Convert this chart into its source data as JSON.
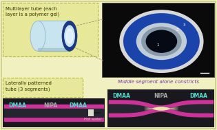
{
  "bg_color": "#f0f0c0",
  "border_color": "#c8c864",
  "top_left_label": "Multilayer tube (each\nlayer is a polymer gel)",
  "bottom_left_label": "Laterally patterned\ntube (3 segments)",
  "middle_label": "Middle segment alone constricts",
  "tube_outer_color": "#c8e4ee",
  "tube_inner_dark": "#1a3888",
  "tube_hole_color": "#ddeef8",
  "label_box_color": "#e8e89a",
  "label_box_border": "#b8b840",
  "dmaa_color": "#55ddcc",
  "nipa_color": "#aaaaaa",
  "hot_water_label": "Hot water",
  "segment_labels": [
    "DMAA",
    "NIPA",
    "DMAA"
  ],
  "middle_label_color": "#7733aa",
  "photo_bg": "#0a0a0a",
  "photo_ring_white": "#d8d8d8",
  "photo_ring_blue": "#1a44aa",
  "photo_ring_white2": "#c0ccd8",
  "photo_center": "#050a15",
  "strip_bg": "#18181e",
  "strip_pink": "#cc3399",
  "strip_center_dark": "#252530",
  "strip_light_center": "#e8e4aa",
  "dashed_color": "#999966",
  "text_color": "#333300",
  "border_outer": "#cccc88"
}
